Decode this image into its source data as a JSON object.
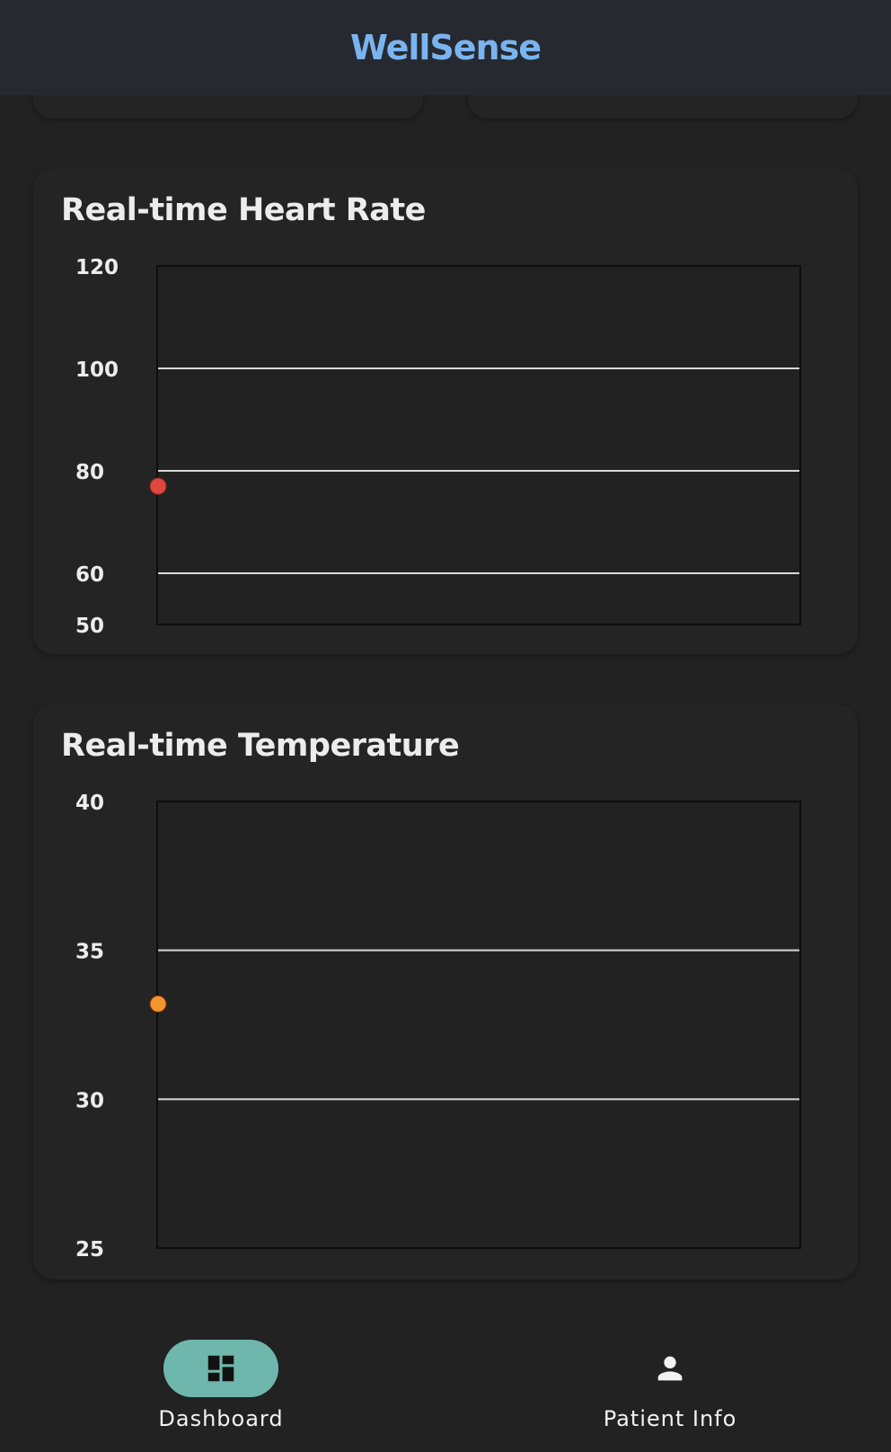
{
  "app": {
    "title": "WellSense",
    "title_color": "#7ab4f0"
  },
  "heart_rate_card": {
    "title": "Real-time Heart Rate"
  },
  "temperature_card": {
    "title": "Real-time Temperature"
  },
  "bottom_nav": {
    "items": [
      {
        "label": "Dashboard",
        "icon": "dashboard-icon",
        "active": true
      },
      {
        "label": "Patient Info",
        "icon": "person-icon",
        "active": false
      }
    ],
    "active_color": "#6fb7ad"
  },
  "chart_data": [
    {
      "type": "scatter",
      "title": "Real-time Heart Rate",
      "xlabel": "",
      "ylabel": "",
      "ylim": [
        50,
        120
      ],
      "y_ticks": [
        "120",
        "100",
        "80",
        "60",
        "50"
      ],
      "gridlines_y": [
        100,
        80,
        60
      ],
      "grid": true,
      "series": [
        {
          "values": [
            77
          ],
          "color": "#e0483e"
        }
      ]
    },
    {
      "type": "scatter",
      "title": "Real-time Temperature",
      "xlabel": "",
      "ylabel": "",
      "ylim": [
        25,
        40
      ],
      "y_ticks": [
        "40",
        "35",
        "30",
        "25"
      ],
      "gridlines_y": [
        35,
        30
      ],
      "grid": true,
      "series": [
        {
          "values": [
            33.2
          ],
          "color": "#f0962a"
        }
      ]
    }
  ]
}
